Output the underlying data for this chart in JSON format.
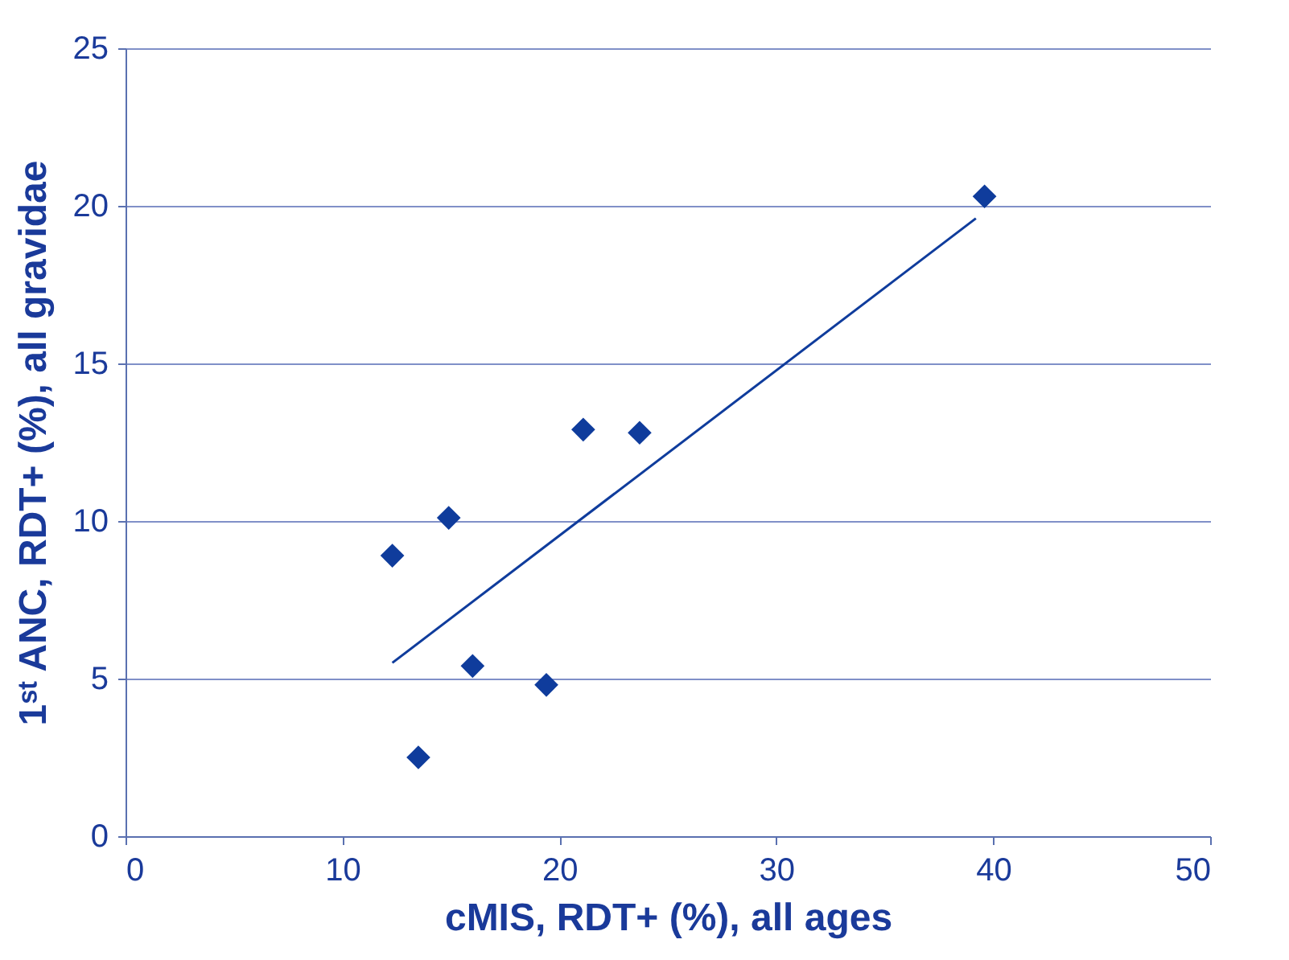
{
  "chart_data": {
    "type": "scatter",
    "xlabel": "cMIS, RDT+ (%), all ages",
    "ylabel": "1ˢᵗ ANC, RDT+ (%), all gravidae",
    "xlim": [
      0,
      50
    ],
    "xticks": [
      0,
      10,
      20,
      30,
      40,
      50
    ],
    "ylim": [
      0,
      25
    ],
    "yticks": [
      0,
      5,
      10,
      15,
      20,
      25
    ],
    "grid": "y",
    "legend": false,
    "series": [
      {
        "marker": "diamond",
        "color": "#0f3c9c",
        "x": [
          12.3,
          14.9,
          13.5,
          16.0,
          19.4,
          21.1,
          23.7,
          39.6
        ],
        "values": [
          8.9,
          10.1,
          2.5,
          5.4,
          4.8,
          12.9,
          12.8,
          20.3
        ]
      },
      {
        "type": "line",
        "color": "#0f3c9c",
        "line_style": "solid",
        "marker": "none",
        "x": [
          12.3,
          39.2
        ],
        "values": [
          5.5,
          19.6
        ]
      }
    ]
  }
}
